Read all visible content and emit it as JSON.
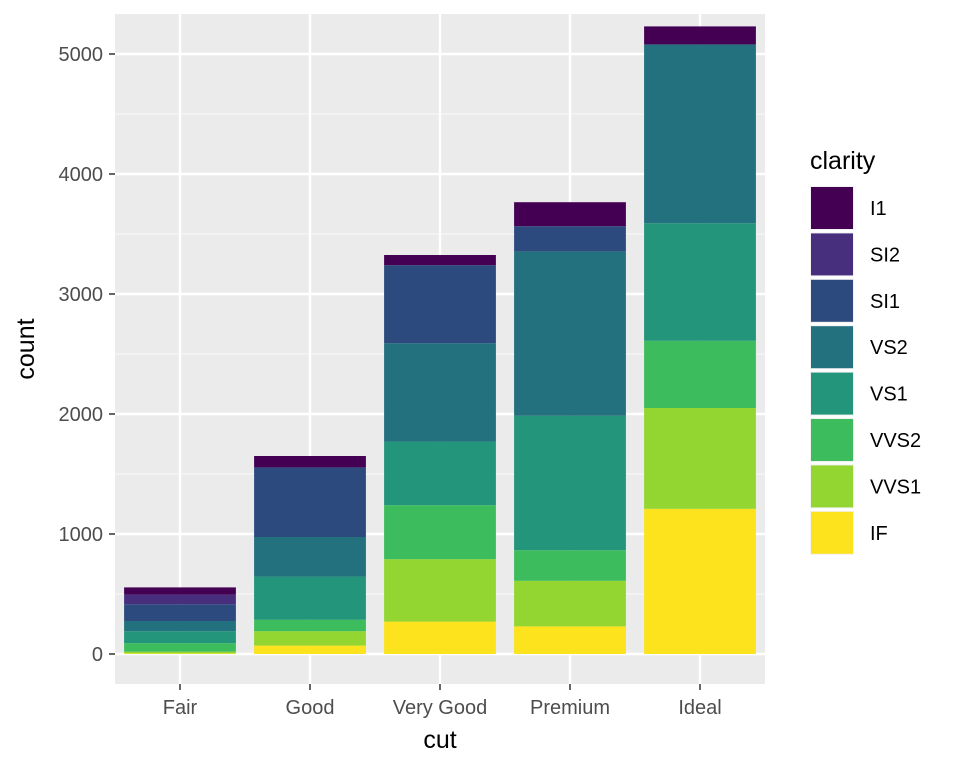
{
  "chart_data": {
    "type": "bar",
    "stacked": true,
    "title": "",
    "xlabel": "cut",
    "ylabel": "count",
    "categories": [
      "Fair",
      "Good",
      "Very Good",
      "Premium",
      "Ideal"
    ],
    "ylim": [
      0,
      5350
    ],
    "yticks": [
      0,
      1000,
      2000,
      3000,
      4000,
      5000
    ],
    "grid": true,
    "legend": {
      "title": "clarity",
      "position": "right"
    },
    "series": [
      {
        "name": "I1",
        "color": "#440154",
        "values": [
          60,
          95,
          85,
          200,
          150
        ]
      },
      {
        "name": "SI2",
        "color": "#472F7D",
        "values": [
          80,
          0,
          0,
          0,
          0
        ]
      },
      {
        "name": "SI1",
        "color": "#2C4A7E",
        "values": [
          140,
          580,
          650,
          210,
          0
        ]
      },
      {
        "name": "VS2",
        "color": "#23707E",
        "values": [
          85,
          330,
          820,
          1370,
          1490
        ]
      },
      {
        "name": "VS1",
        "color": "#22957A",
        "values": [
          100,
          360,
          530,
          1120,
          980
        ]
      },
      {
        "name": "VVS2",
        "color": "#3DBC5D",
        "values": [
          70,
          95,
          450,
          255,
          560
        ]
      },
      {
        "name": "VVS1",
        "color": "#93D631",
        "values": [
          15,
          120,
          520,
          380,
          840
        ]
      },
      {
        "name": "IF",
        "color": "#FCE31E",
        "values": [
          5,
          70,
          270,
          230,
          1210
        ]
      }
    ]
  }
}
